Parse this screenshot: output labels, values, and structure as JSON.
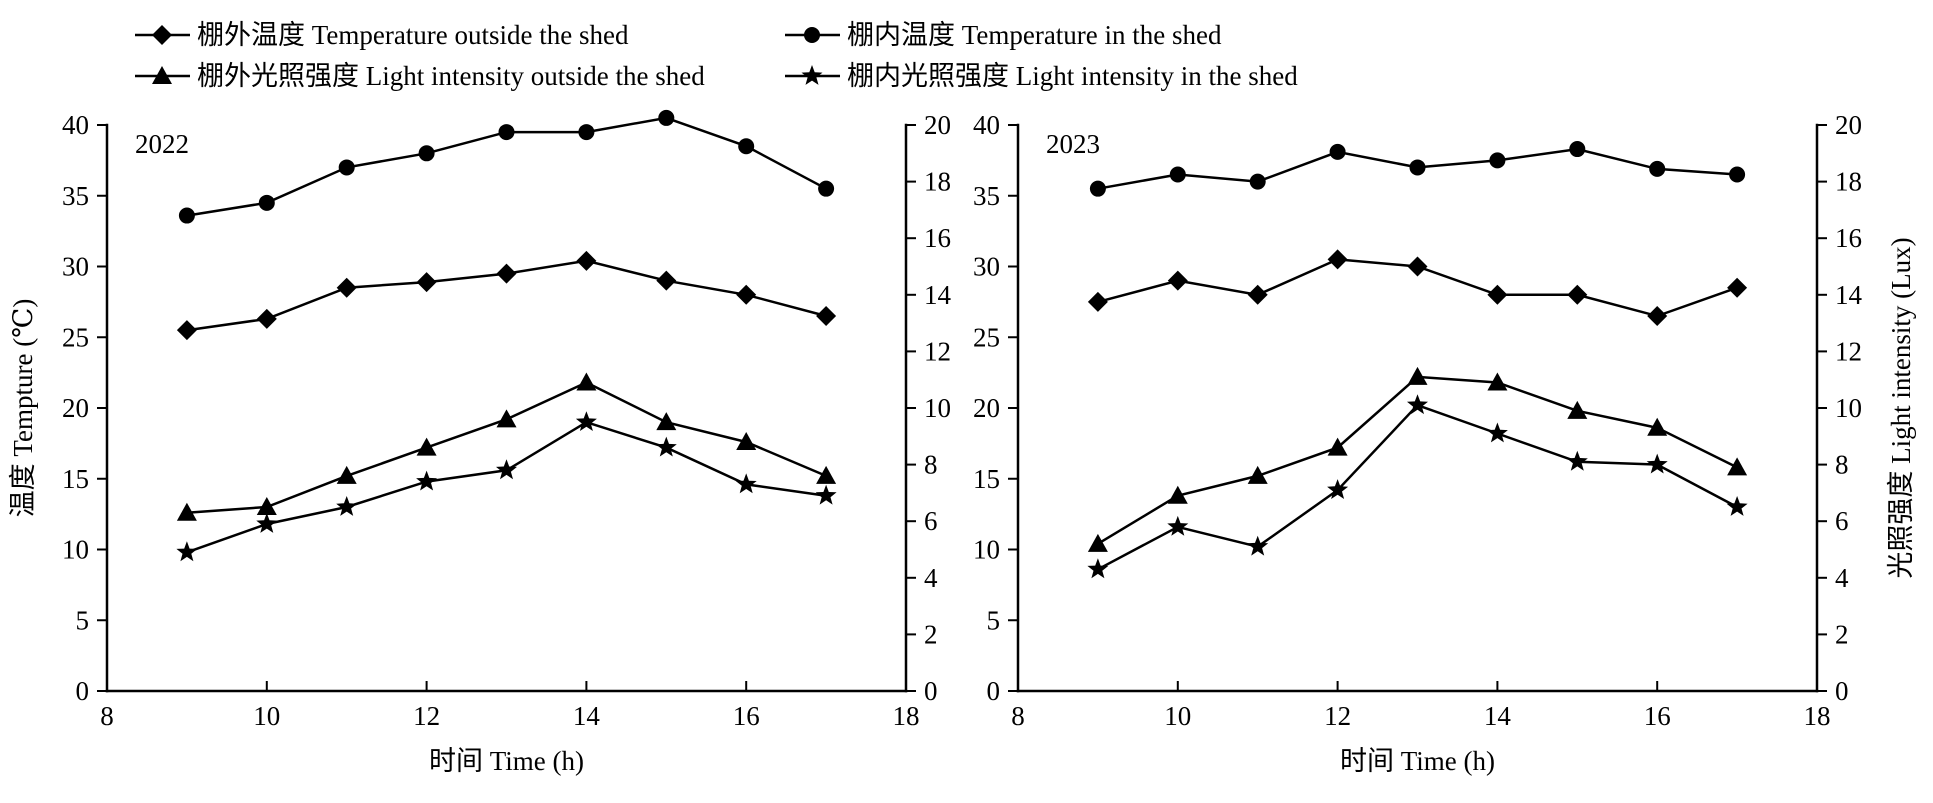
{
  "legend": {
    "items": [
      {
        "label": "棚外温度 Temperature outside the shed",
        "marker": "diamond"
      },
      {
        "label": "棚内温度 Temperature in the shed",
        "marker": "circle"
      },
      {
        "label": "棚外光照强度 Light intensity outside the shed",
        "marker": "triangle"
      },
      {
        "label": "棚内光照强度 Light intensity in the shed",
        "marker": "star"
      }
    ]
  },
  "chart_data": [
    {
      "type": "line",
      "panel_label": "2022",
      "xlabel": "时间 Time (h)",
      "ylabel_left": "温度 Tempture (℃)",
      "ylabel_right": "",
      "xlim": [
        8,
        18
      ],
      "xticks": [
        8,
        10,
        12,
        14,
        16,
        18
      ],
      "ylim_left": [
        0,
        40
      ],
      "yticks_left": [
        0,
        5,
        10,
        15,
        20,
        25,
        30,
        35,
        40
      ],
      "ylim_right": [
        0,
        20
      ],
      "yticks_right": [
        0,
        2,
        4,
        6,
        8,
        10,
        12,
        14,
        16,
        18,
        20
      ],
      "grid": false,
      "x": [
        9,
        10,
        11,
        12,
        13,
        14,
        15,
        16,
        17
      ],
      "series": [
        {
          "name": "棚外温度 Temperature outside the shed",
          "axis": "left",
          "marker": "diamond",
          "values": [
            25.5,
            26.3,
            28.5,
            28.9,
            29.5,
            30.4,
            29.0,
            28.0,
            26.5
          ]
        },
        {
          "name": "棚内温度 Temperature in the shed",
          "axis": "left",
          "marker": "circle",
          "values": [
            33.6,
            34.5,
            37.0,
            38.0,
            39.5,
            39.5,
            40.5,
            38.5,
            35.5
          ]
        },
        {
          "name": "棚外光照强度 Light intensity outside the shed",
          "axis": "right",
          "marker": "triangle",
          "values": [
            6.3,
            6.5,
            7.6,
            8.6,
            9.6,
            10.9,
            9.5,
            8.8,
            7.6
          ]
        },
        {
          "name": "棚内光照强度 Light intensity in the shed",
          "axis": "right",
          "marker": "star",
          "values": [
            4.9,
            5.9,
            6.5,
            7.4,
            7.8,
            9.5,
            8.6,
            7.3,
            6.9
          ]
        }
      ]
    },
    {
      "type": "line",
      "panel_label": "2023",
      "xlabel": "时间 Time (h)",
      "ylabel_left": "",
      "ylabel_right": "光照强度 Light intensity (Lux)",
      "xlim": [
        8,
        18
      ],
      "xticks": [
        8,
        10,
        12,
        14,
        16,
        18
      ],
      "ylim_left": [
        0,
        40
      ],
      "yticks_left": [
        0,
        5,
        10,
        15,
        20,
        25,
        30,
        35,
        40
      ],
      "ylim_right": [
        0,
        20
      ],
      "yticks_right": [
        0,
        2,
        4,
        6,
        8,
        10,
        12,
        14,
        16,
        18,
        20
      ],
      "grid": false,
      "x": [
        9,
        10,
        11,
        12,
        13,
        14,
        15,
        16,
        17
      ],
      "series": [
        {
          "name": "棚外温度 Temperature outside the shed",
          "axis": "left",
          "marker": "diamond",
          "values": [
            27.5,
            29.0,
            28.0,
            30.5,
            30.0,
            28.0,
            28.0,
            26.5,
            28.5
          ]
        },
        {
          "name": "棚内温度 Temperature in the shed",
          "axis": "left",
          "marker": "circle",
          "values": [
            35.5,
            36.5,
            36.0,
            38.1,
            37.0,
            37.5,
            38.3,
            36.9,
            36.5
          ]
        },
        {
          "name": "棚外光照强度 Light intensity outside the shed",
          "axis": "right",
          "marker": "triangle",
          "values": [
            5.2,
            6.9,
            7.6,
            8.6,
            11.1,
            10.9,
            9.9,
            9.3,
            7.9
          ]
        },
        {
          "name": "棚内光照强度 Light intensity in the shed",
          "axis": "right",
          "marker": "star",
          "values": [
            4.3,
            5.8,
            5.1,
            7.1,
            10.1,
            9.1,
            8.1,
            8.0,
            6.5
          ]
        }
      ]
    }
  ]
}
